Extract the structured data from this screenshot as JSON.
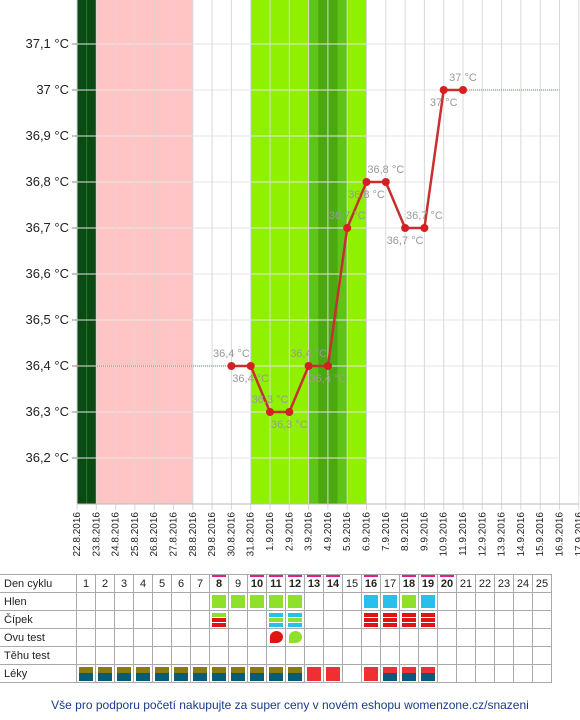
{
  "chart_data": {
    "type": "line",
    "y_ticks": [
      "36,2 °C",
      "36,3 °C",
      "36,4 °C",
      "36,5 °C",
      "36,6 °C",
      "36,7 °C",
      "36,8 °C",
      "36,9 °C",
      "37 °C",
      "37,1 °C"
    ],
    "y_tick_values": [
      36.2,
      36.3,
      36.4,
      36.5,
      36.6,
      36.7,
      36.8,
      36.9,
      37.0,
      37.1
    ],
    "ylim": [
      36.1,
      37.2
    ],
    "dates": [
      "22.8.2016",
      "23.8.2016",
      "24.8.2016",
      "25.8.2016",
      "26.8.2016",
      "27.8.2016",
      "28.8.2016",
      "29.8.2016",
      "30.8.2016",
      "31.8.2016",
      "1.9.2016",
      "2.9.2016",
      "3.9.2016",
      "4.9.2016",
      "5.9.2016",
      "6.9.2016",
      "7.9.2016",
      "8.9.2016",
      "9.9.2016",
      "10.9.2016",
      "11.9.2016",
      "12.9.2016",
      "13.9.2016",
      "14.9.2016",
      "15.9.2016",
      "16.9.2016",
      "17.9.2016"
    ],
    "bands": [
      {
        "from": 0,
        "to": 1,
        "color": "#0b4a12"
      },
      {
        "from": 1,
        "to": 6,
        "color": "#ffc4c4"
      },
      {
        "from": 9,
        "to": 15,
        "color": "#8ff000"
      },
      {
        "from": 12,
        "to": 14,
        "color": "#5fc418"
      },
      {
        "from": 12.5,
        "to": 13.5,
        "color": "#4aa810"
      }
    ],
    "series": [
      {
        "color": "#d42020",
        "points": [
          {
            "i": 8,
            "v": 36.4,
            "label": "36,4 °C"
          },
          {
            "i": 9,
            "v": 36.4,
            "label": "36,4 °C"
          },
          {
            "i": 10,
            "v": 36.3,
            "label": "36,3 °C"
          },
          {
            "i": 11,
            "v": 36.3,
            "label": "36,3 °C"
          },
          {
            "i": 12,
            "v": 36.4,
            "label": "36,4 °C"
          },
          {
            "i": 13,
            "v": 36.4,
            "label": "36,4 °C"
          },
          {
            "i": 14,
            "v": 36.7,
            "label": "36,7 °C"
          },
          {
            "i": 15,
            "v": 36.8,
            "label": "36,8 °C"
          },
          {
            "i": 16,
            "v": 36.8,
            "label": "36,8 °C"
          },
          {
            "i": 17,
            "v": 36.7,
            "label": "36,7 °C"
          },
          {
            "i": 18,
            "v": 36.7,
            "label": "36,7 °C"
          },
          {
            "i": 19,
            "v": 37.0,
            "label": "37 °C"
          },
          {
            "i": 20,
            "v": 37.0,
            "label": "37 °C"
          }
        ]
      }
    ],
    "ref_lines": [
      {
        "from": 0,
        "to": 8,
        "v": 36.4
      },
      {
        "from": 20,
        "to": 25,
        "v": 37.0
      }
    ]
  },
  "grid": {
    "row_labels": [
      "Den cyklu",
      "Hlen",
      "Čípek",
      "Ovu test",
      "Těhu test",
      "Léky"
    ],
    "days": [
      "1",
      "2",
      "3",
      "4",
      "5",
      "6",
      "7",
      "8",
      "9",
      "10",
      "11",
      "12",
      "13",
      "14",
      "15",
      "16",
      "17",
      "18",
      "19",
      "20",
      "21",
      "22",
      "23",
      "24",
      "25"
    ],
    "bold_days": [
      8,
      10,
      11,
      12,
      13,
      14,
      16,
      18,
      19,
      20
    ],
    "hlen_days": [
      8,
      9,
      10,
      11,
      12,
      16,
      17,
      18,
      19
    ],
    "colors": {
      "hlen_green": "#8ee02a",
      "hlen_blue": "#28c0ea",
      "cipek_green": "#8ee02a",
      "cipek_red": "#e01414",
      "cipek_blue": "#28c0ea",
      "leky_top": "#8a7a10",
      "leky_bottom": "#0a5a7a",
      "leky_red": "#f03030",
      "ovu_red": "#e01414",
      "ovu_green": "#8ee02a",
      "marker": "#e0208a"
    }
  },
  "footer": "Vše pro podporu početí nakupujte za super ceny v novém eshopu womenzone.cz/snazeni"
}
